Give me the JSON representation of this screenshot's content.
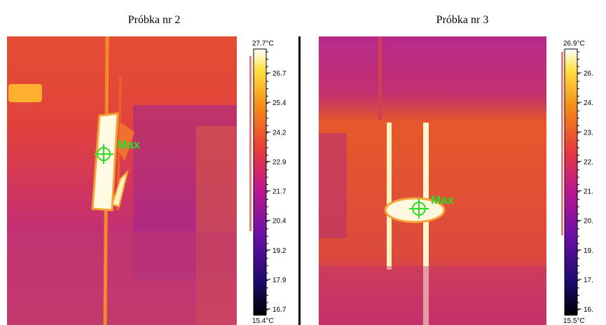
{
  "panels": [
    {
      "title": "Próbka nr 2",
      "max_label": "Max",
      "scale": {
        "max": "27.7°C",
        "min": "15.4°C",
        "ticks": [
          "26.7",
          "25.4",
          "24.2",
          "22.9",
          "21.7",
          "20.4",
          "19.2",
          "17.9",
          "16.7"
        ]
      }
    },
    {
      "title": "Próbka nr 3",
      "max_label": "Max",
      "scale": {
        "max": "26.9°C",
        "min": "15.5°C",
        "ticks": [
          "26.",
          "24.",
          "23.",
          "22.",
          "21.",
          "20.",
          "19.",
          "17.",
          "16."
        ]
      }
    }
  ]
}
